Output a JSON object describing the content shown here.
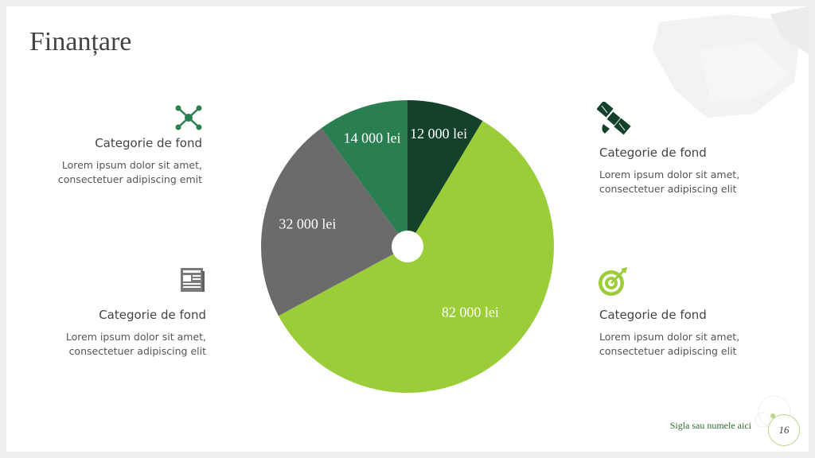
{
  "slide": {
    "title": "Finanțare",
    "footer": "Sigla sau numele aici",
    "page_number": "16"
  },
  "blocks": [
    {
      "icon": "network-icon",
      "category": "Categorie de fond",
      "line1": "Lorem ipsum dolor sit amet,",
      "line2": "consectetuer adipiscing emit"
    },
    {
      "icon": "satellite-icon",
      "category": "Categorie de fond",
      "line1": "Lorem ipsum dolor sit amet,",
      "line2": "consectetuer adipiscing elit"
    },
    {
      "icon": "newspaper-icon",
      "category": "Categorie de fond",
      "line1": "Lorem ipsum dolor sit amet,",
      "line2": "consectetuer adipiscing elit"
    },
    {
      "icon": "target-icon",
      "category": "Categorie de fond",
      "line1": "Lorem ipsum dolor sit amet,",
      "line2": "consectetuer adipiscing elit"
    }
  ],
  "colors": {
    "dark_green": "#14412a",
    "mid_green": "#2a7f52",
    "gray": "#6b6b6b",
    "lime": "#9acd37"
  },
  "chart_data": {
    "type": "pie",
    "values": [
      12000,
      82000,
      32000,
      14000
    ],
    "labels": [
      "12 000 lei",
      "82 000 lei",
      "32 000 lei",
      "14 000 lei"
    ],
    "colors": [
      "#14412a",
      "#9acd37",
      "#6b6b6b",
      "#2a7f52"
    ],
    "start_angle": "top",
    "direction": "clockwise",
    "center_hole": true
  }
}
